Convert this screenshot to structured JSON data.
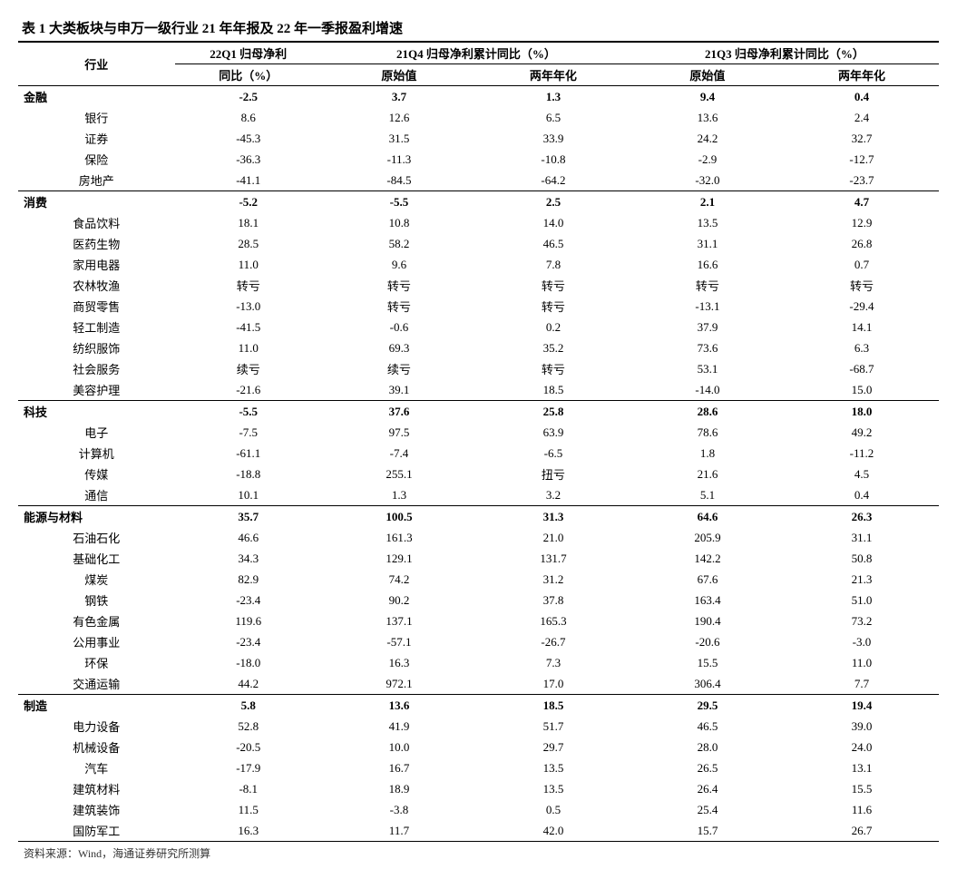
{
  "title": "表 1 大类板块与申万一级行业 21 年年报及 22 年一季报盈利增速",
  "source": "资料来源：Wind，海通证券研究所测算",
  "headers": {
    "industry": "行业",
    "q1_top": "22Q1 归母净利",
    "q1_bottom": "同比（%）",
    "q4_top": "21Q4 归母净利累计同比（%）",
    "q3_top": "21Q3 归母净利累计同比（%）",
    "sub_original": "原始值",
    "sub_annualized": "两年年化"
  },
  "rows": [
    {
      "type": "sector",
      "name": "金融",
      "v": [
        "-2.5",
        "3.7",
        "1.3",
        "9.4",
        "0.4"
      ]
    },
    {
      "type": "sub",
      "name": "银行",
      "v": [
        "8.6",
        "12.6",
        "6.5",
        "13.6",
        "2.4"
      ]
    },
    {
      "type": "sub",
      "name": "证券",
      "v": [
        "-45.3",
        "31.5",
        "33.9",
        "24.2",
        "32.7"
      ]
    },
    {
      "type": "sub",
      "name": "保险",
      "v": [
        "-36.3",
        "-11.3",
        "-10.8",
        "-2.9",
        "-12.7"
      ]
    },
    {
      "type": "sub",
      "name": "房地产",
      "v": [
        "-41.1",
        "-84.5",
        "-64.2",
        "-32.0",
        "-23.7"
      ]
    },
    {
      "type": "sector",
      "name": "消费",
      "v": [
        "-5.2",
        "-5.5",
        "2.5",
        "2.1",
        "4.7"
      ]
    },
    {
      "type": "sub",
      "name": "食品饮料",
      "v": [
        "18.1",
        "10.8",
        "14.0",
        "13.5",
        "12.9"
      ]
    },
    {
      "type": "sub",
      "name": "医药生物",
      "v": [
        "28.5",
        "58.2",
        "46.5",
        "31.1",
        "26.8"
      ]
    },
    {
      "type": "sub",
      "name": "家用电器",
      "v": [
        "11.0",
        "9.6",
        "7.8",
        "16.6",
        "0.7"
      ]
    },
    {
      "type": "sub",
      "name": "农林牧渔",
      "v": [
        "转亏",
        "转亏",
        "转亏",
        "转亏",
        "转亏"
      ]
    },
    {
      "type": "sub",
      "name": "商贸零售",
      "v": [
        "-13.0",
        "转亏",
        "转亏",
        "-13.1",
        "-29.4"
      ]
    },
    {
      "type": "sub",
      "name": "轻工制造",
      "v": [
        "-41.5",
        "-0.6",
        "0.2",
        "37.9",
        "14.1"
      ]
    },
    {
      "type": "sub",
      "name": "纺织服饰",
      "v": [
        "11.0",
        "69.3",
        "35.2",
        "73.6",
        "6.3"
      ]
    },
    {
      "type": "sub",
      "name": "社会服务",
      "v": [
        "续亏",
        "续亏",
        "转亏",
        "53.1",
        "-68.7"
      ]
    },
    {
      "type": "sub",
      "name": "美容护理",
      "v": [
        "-21.6",
        "39.1",
        "18.5",
        "-14.0",
        "15.0"
      ]
    },
    {
      "type": "sector",
      "name": "科技",
      "v": [
        "-5.5",
        "37.6",
        "25.8",
        "28.6",
        "18.0"
      ]
    },
    {
      "type": "sub",
      "name": "电子",
      "v": [
        "-7.5",
        "97.5",
        "63.9",
        "78.6",
        "49.2"
      ]
    },
    {
      "type": "sub",
      "name": "计算机",
      "v": [
        "-61.1",
        "-7.4",
        "-6.5",
        "1.8",
        "-11.2"
      ]
    },
    {
      "type": "sub",
      "name": "传媒",
      "v": [
        "-18.8",
        "255.1",
        "扭亏",
        "21.6",
        "4.5"
      ]
    },
    {
      "type": "sub",
      "name": "通信",
      "v": [
        "10.1",
        "1.3",
        "3.2",
        "5.1",
        "0.4"
      ]
    },
    {
      "type": "sector",
      "name": "能源与材料",
      "v": [
        "35.7",
        "100.5",
        "31.3",
        "64.6",
        "26.3"
      ]
    },
    {
      "type": "sub",
      "name": "石油石化",
      "v": [
        "46.6",
        "161.3",
        "21.0",
        "205.9",
        "31.1"
      ]
    },
    {
      "type": "sub",
      "name": "基础化工",
      "v": [
        "34.3",
        "129.1",
        "131.7",
        "142.2",
        "50.8"
      ]
    },
    {
      "type": "sub",
      "name": "煤炭",
      "v": [
        "82.9",
        "74.2",
        "31.2",
        "67.6",
        "21.3"
      ]
    },
    {
      "type": "sub",
      "name": "钢铁",
      "v": [
        "-23.4",
        "90.2",
        "37.8",
        "163.4",
        "51.0"
      ]
    },
    {
      "type": "sub",
      "name": "有色金属",
      "v": [
        "119.6",
        "137.1",
        "165.3",
        "190.4",
        "73.2"
      ]
    },
    {
      "type": "sub",
      "name": "公用事业",
      "v": [
        "-23.4",
        "-57.1",
        "-26.7",
        "-20.6",
        "-3.0"
      ]
    },
    {
      "type": "sub",
      "name": "环保",
      "v": [
        "-18.0",
        "16.3",
        "7.3",
        "15.5",
        "11.0"
      ]
    },
    {
      "type": "sub",
      "name": "交通运输",
      "v": [
        "44.2",
        "972.1",
        "17.0",
        "306.4",
        "7.7"
      ]
    },
    {
      "type": "sector",
      "name": "制造",
      "v": [
        "5.8",
        "13.6",
        "18.5",
        "29.5",
        "19.4"
      ]
    },
    {
      "type": "sub",
      "name": "电力设备",
      "v": [
        "52.8",
        "41.9",
        "51.7",
        "46.5",
        "39.0"
      ]
    },
    {
      "type": "sub",
      "name": "机械设备",
      "v": [
        "-20.5",
        "10.0",
        "29.7",
        "28.0",
        "24.0"
      ]
    },
    {
      "type": "sub",
      "name": "汽车",
      "v": [
        "-17.9",
        "16.7",
        "13.5",
        "26.5",
        "13.1"
      ]
    },
    {
      "type": "sub",
      "name": "建筑材料",
      "v": [
        "-8.1",
        "18.9",
        "13.5",
        "26.4",
        "15.5"
      ]
    },
    {
      "type": "sub",
      "name": "建筑装饰",
      "v": [
        "11.5",
        "-3.8",
        "0.5",
        "25.4",
        "11.6"
      ]
    },
    {
      "type": "sub",
      "name": "国防军工",
      "v": [
        "16.3",
        "11.7",
        "42.0",
        "15.7",
        "26.7"
      ]
    }
  ]
}
